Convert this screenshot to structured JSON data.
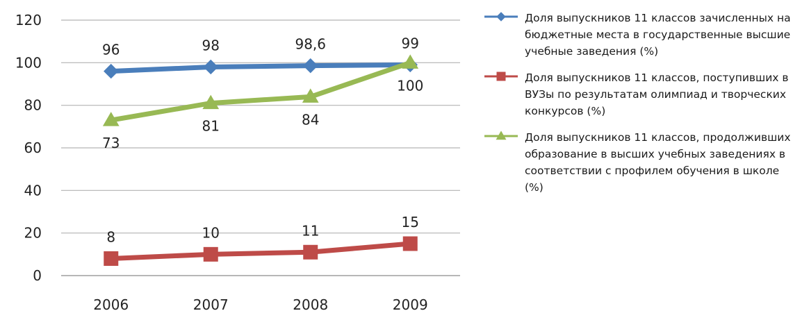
{
  "chart_data": {
    "type": "line",
    "categories": [
      "2006",
      "2007",
      "2008",
      "2009"
    ],
    "ylim": [
      0,
      120
    ],
    "yticks": [
      "0",
      "20",
      "40",
      "60",
      "80",
      "100",
      "120"
    ],
    "grid": true,
    "legend_position": "right",
    "series": [
      {
        "name": "Доля выпускников 11 классов зачисленных на бюджетные места в государственные высшие учебные заведения (%)",
        "values": [
          96,
          98,
          98.6,
          99
        ],
        "labels": [
          "96",
          "98",
          "98,6",
          "99"
        ],
        "color": "#4a7ebb",
        "marker": "diamond",
        "label_side": "above"
      },
      {
        "name": "Доля выпускников  11 классов, поступивших в ВУЗы по результатам олимпиад и творческих конкурсов (%)",
        "values": [
          8,
          10,
          11,
          15
        ],
        "labels": [
          "8",
          "10",
          "11",
          "15"
        ],
        "color": "#be4b48",
        "marker": "square",
        "label_side": "above"
      },
      {
        "name": "Доля выпускников 11 классов, продолживших образование в высших учебных заведениях в соответствии с профилем обучения в школе (%)",
        "values": [
          73,
          81,
          84,
          100
        ],
        "labels": [
          "73",
          "81",
          "84",
          "100"
        ],
        "color": "#98b954",
        "marker": "triangle",
        "label_side": "below"
      }
    ]
  }
}
